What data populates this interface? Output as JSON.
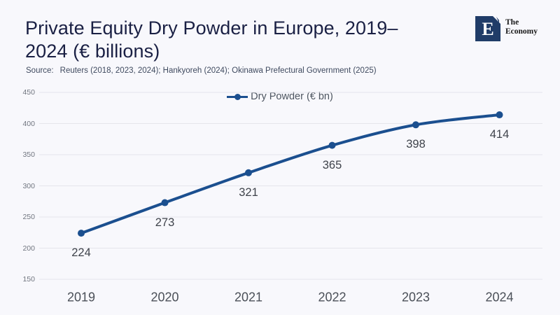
{
  "page": {
    "background": "#f8f8fc"
  },
  "header": {
    "title": "Private Equity Dry Powder in Europe, 2019–2024 (€ billions)",
    "source_label": "Source:",
    "source_text": "Reuters (2018, 2023, 2024); Hankyoreh (2024); Okinawa Prefectural Government (2025)"
  },
  "logo": {
    "letter": "E",
    "name_line1": "The",
    "name_line2": "Economy",
    "square_color": "#203c68"
  },
  "chart_data": {
    "type": "line",
    "title": "Private Equity Dry Powder in Europe, 2019–2024 (€ billions)",
    "categories": [
      "2019",
      "2020",
      "2021",
      "2022",
      "2023",
      "2024"
    ],
    "series": [
      {
        "name": "Dry Powder (€ bn)",
        "values": [
          224,
          273,
          321,
          365,
          398,
          414
        ],
        "color": "#1b4f8f"
      }
    ],
    "ylim": [
      150,
      450
    ],
    "ytick_step": 50,
    "yticks": [
      150,
      200,
      250,
      300,
      350,
      400,
      450
    ],
    "grid": "horizontal",
    "grid_color": "#e5e5eb",
    "legend_position": "top-center",
    "data_labels": true,
    "data_label_position": "below"
  }
}
